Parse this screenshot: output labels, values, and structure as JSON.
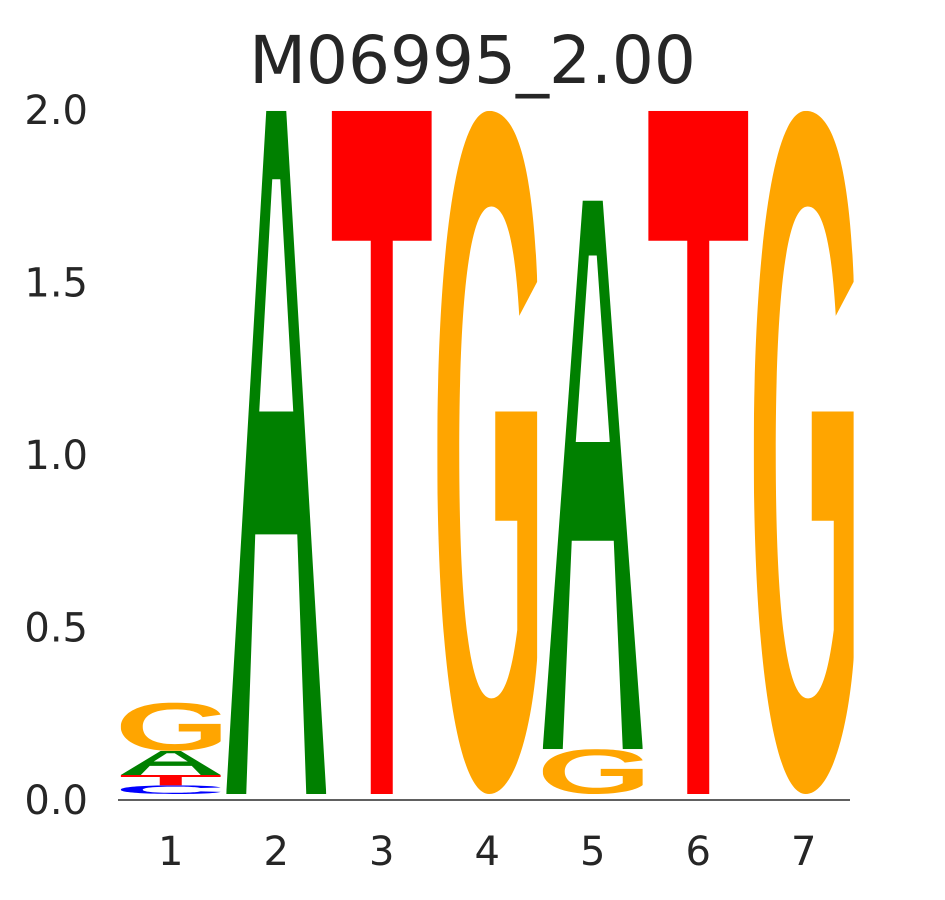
{
  "chart_data": {
    "type": "sequence-logo",
    "title": "M06995_2.00",
    "xlabel": "",
    "ylabel": "",
    "ylim": [
      0,
      2.0
    ],
    "yticks": [
      "0.0",
      "0.5",
      "1.0",
      "1.5",
      "2.0"
    ],
    "positions": [
      "1",
      "2",
      "3",
      "4",
      "5",
      "6",
      "7"
    ],
    "colors": {
      "A": "#008000",
      "C": "#0000ff",
      "G": "#ffa500",
      "T": "#ff0000"
    },
    "stacks": [
      [
        {
          "base": "C",
          "height": 0.025
        },
        {
          "base": "T",
          "height": 0.03
        },
        {
          "base": "A",
          "height": 0.07
        },
        {
          "base": "G",
          "height": 0.14
        }
      ],
      [
        {
          "base": "A",
          "height": 1.98
        }
      ],
      [
        {
          "base": "T",
          "height": 1.98
        }
      ],
      [
        {
          "base": "G",
          "height": 1.98
        }
      ],
      [
        {
          "base": "G",
          "height": 0.13
        },
        {
          "base": "A",
          "height": 1.59
        }
      ],
      [
        {
          "base": "T",
          "height": 1.98
        }
      ],
      [
        {
          "base": "G",
          "height": 1.98
        }
      ]
    ]
  }
}
